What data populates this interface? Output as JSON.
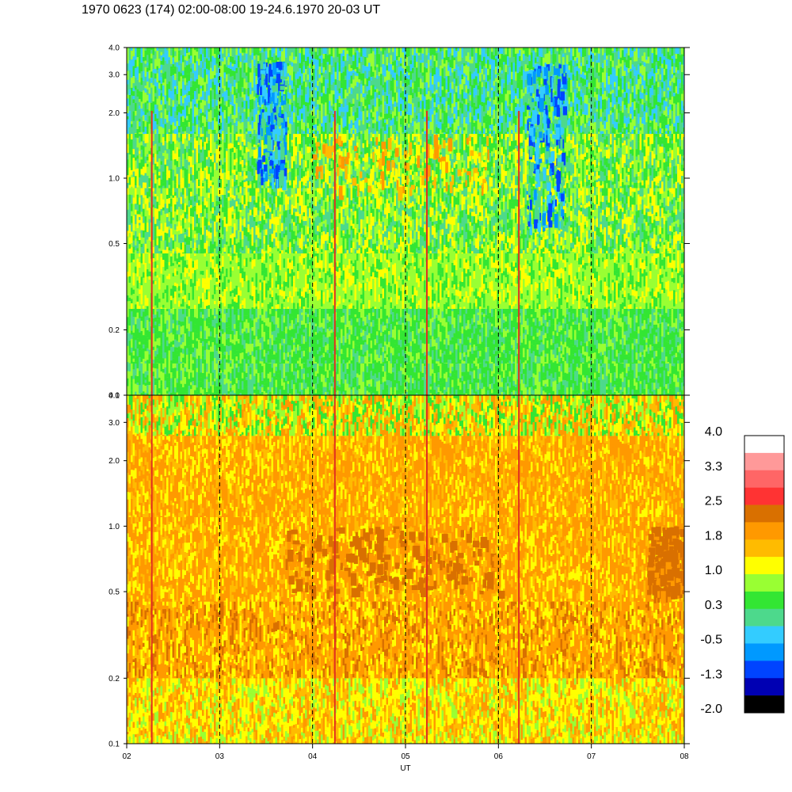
{
  "title": "1970 0623 (174) 02:00-08:00 19-24.6.1970  20-03 UT",
  "chart_data": [
    {
      "type": "heatmap",
      "panel": "upper",
      "x_range": [
        2,
        8
      ],
      "y_scale": "log",
      "y_range": [
        0.1,
        4.0
      ],
      "y_ticks": [
        "0.1",
        "0.2",
        "0.5",
        "1.0",
        "2.0",
        "3.0",
        "4.0"
      ],
      "dominant_levels": [
        "green",
        "yellow-green",
        "teal",
        "blue"
      ],
      "features": [
        {
          "kind": "blue patch",
          "x": [
            3.4,
            3.7
          ],
          "y": [
            1.0,
            3.5
          ]
        },
        {
          "kind": "blue patch",
          "x": [
            6.3,
            6.7
          ],
          "y": [
            0.6,
            3.5
          ]
        },
        {
          "kind": "orange blobs",
          "x": [
            4.0,
            5.9
          ],
          "y": [
            0.9,
            1.6
          ]
        }
      ]
    },
    {
      "type": "heatmap",
      "panel": "lower",
      "x_range": [
        2,
        8
      ],
      "y_scale": "log",
      "y_range": [
        0.1,
        4.0
      ],
      "y_ticks": [
        "0.1",
        "0.2",
        "0.5",
        "1.0",
        "2.0",
        "3.0",
        "4.0"
      ],
      "dominant_levels": [
        "orange",
        "yellow",
        "dark orange"
      ],
      "features": [
        {
          "kind": "dark orange band",
          "x": [
            3.7,
            6.0
          ],
          "y": [
            0.5,
            1.0
          ]
        },
        {
          "kind": "dark orange band",
          "x": [
            7.6,
            8.0
          ],
          "y": [
            0.5,
            1.0
          ]
        }
      ]
    }
  ],
  "x_axis": {
    "label": "UT",
    "ticks": [
      "02",
      "03",
      "04",
      "05",
      "06",
      "07",
      "08"
    ],
    "dashed_lines_at": [
      3,
      4,
      5,
      6,
      7
    ],
    "red_spikes_at": [
      2.27,
      4.24,
      5.23,
      6.22
    ]
  },
  "colorbar": {
    "labels": [
      "4.0",
      "3.3",
      "2.5",
      "1.8",
      "1.0",
      "0.3",
      "-0.5",
      "-1.3",
      "-2.0"
    ],
    "colors": [
      "#ffffff",
      "#ff9999",
      "#ff6666",
      "#ff3333",
      "#d97000",
      "#ff9900",
      "#ffbb00",
      "#ffff00",
      "#99ff33",
      "#33e633",
      "#4dd98c",
      "#33ccff",
      "#0099ff",
      "#0044ff",
      "#0000b3",
      "#000000"
    ]
  }
}
